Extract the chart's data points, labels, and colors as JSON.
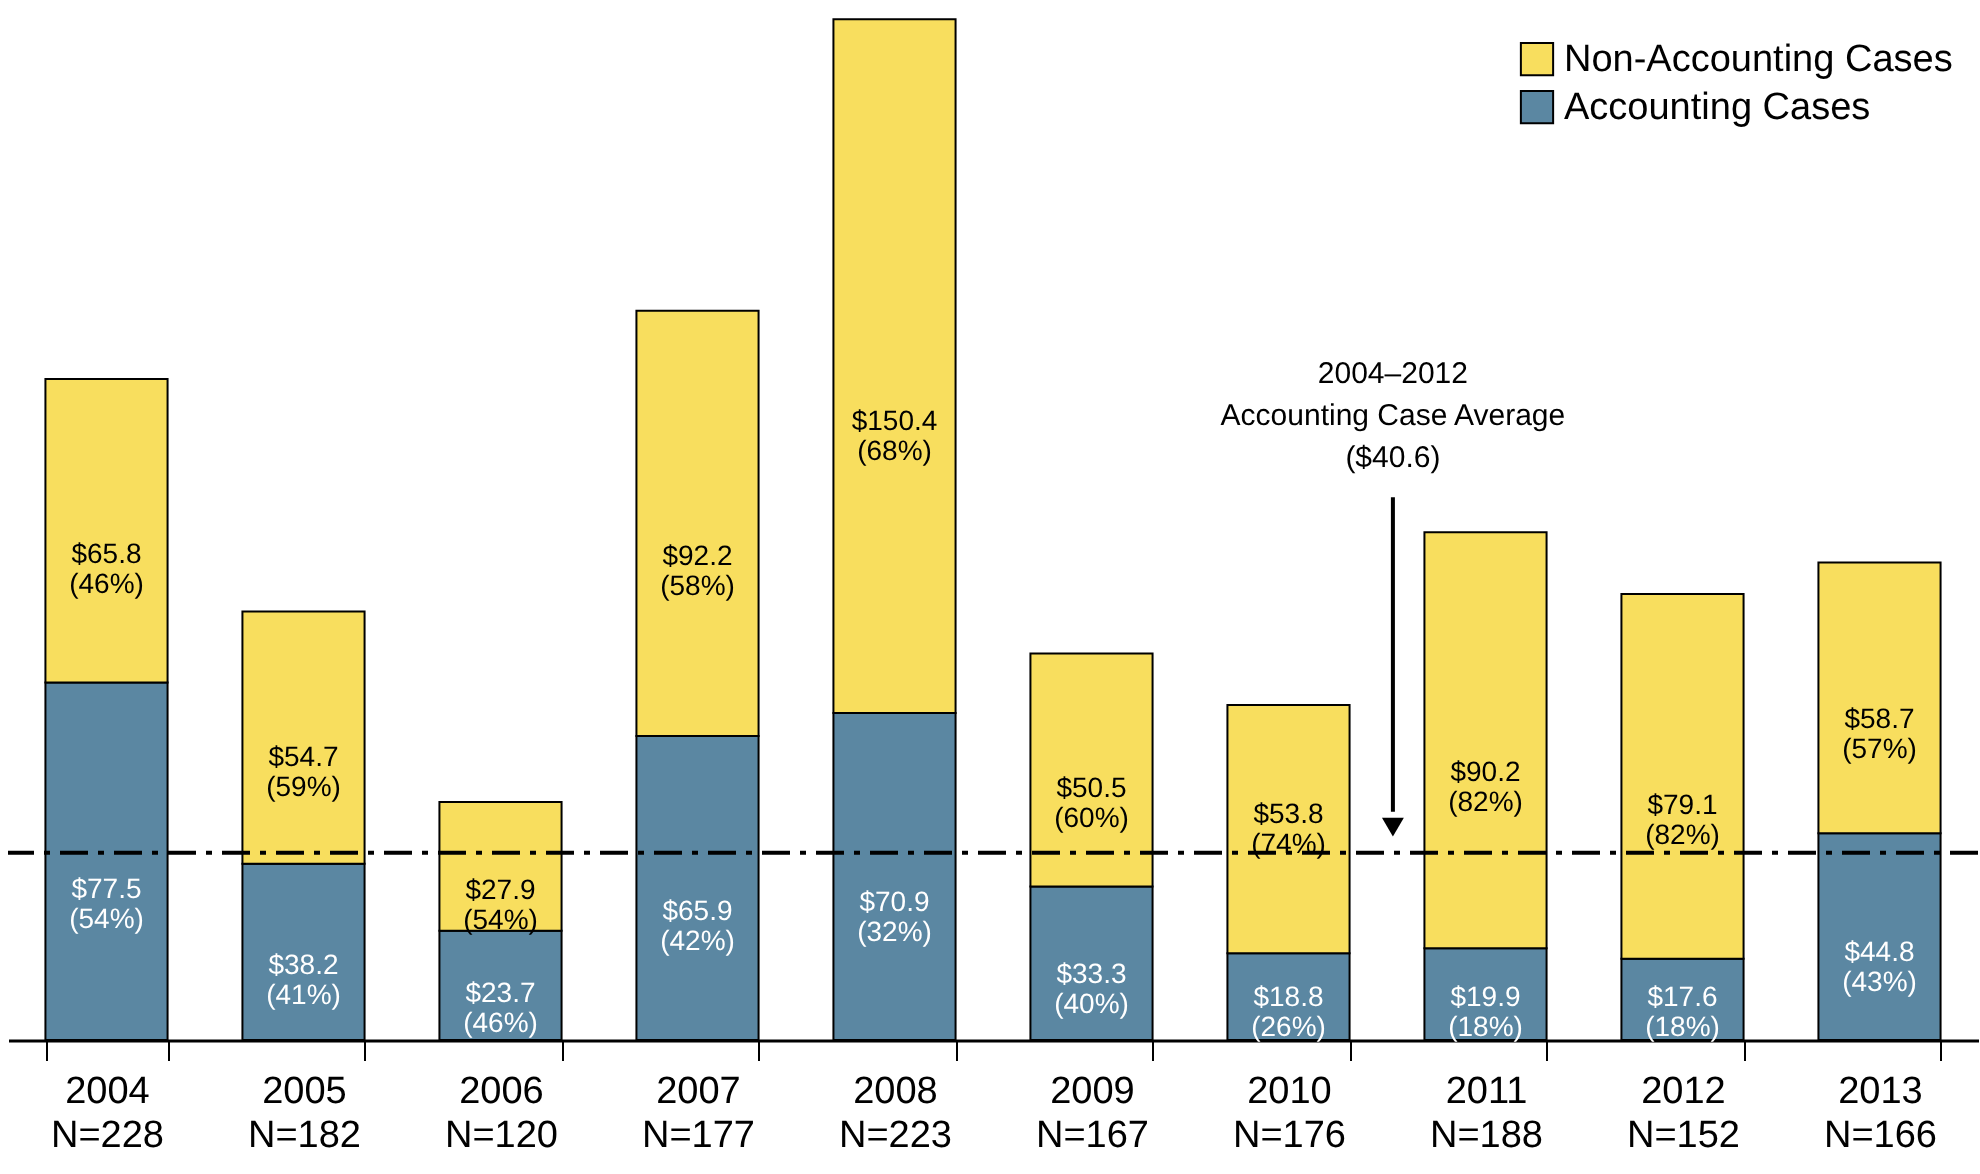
{
  "chart_data": {
    "type": "bar",
    "stacked": true,
    "categories": [
      "2004\nN=228",
      "2005\nN=182",
      "2006\nN=120",
      "2007\nN=177",
      "2008\nN=223",
      "2009\nN=167",
      "2010\nN=176",
      "2011\nN=188",
      "2012\nN=152",
      "2013\nN=166"
    ],
    "series": [
      {
        "name": "Accounting Cases",
        "color": "#5b87a2",
        "values": [
          77.5,
          38.2,
          23.7,
          65.9,
          70.9,
          33.3,
          18.8,
          19.9,
          17.6,
          44.8
        ],
        "value_labels": [
          "$77.5\n(54%)",
          "$38.2\n(41%)",
          "$23.7\n(46%)",
          "$65.9\n(42%)",
          "$70.9\n(32%)",
          "$33.3\n(40%)",
          "$18.8\n(26%)",
          "$19.9\n(18%)",
          "$17.6\n(18%)",
          "$44.8\n(43%)"
        ]
      },
      {
        "name": "Non-Accounting Cases",
        "color": "#f8de5e",
        "values": [
          65.8,
          54.7,
          27.9,
          92.2,
          150.4,
          50.5,
          53.8,
          90.2,
          79.1,
          58.7
        ],
        "value_labels": [
          "$65.8\n(46%)",
          "$54.7\n(59%)",
          "$27.9\n(54%)",
          "$92.2\n(58%)",
          "$150.4\n(68%)",
          "$50.5\n(60%)",
          "$53.8\n(74%)",
          "$90.2\n(82%)",
          "$79.1\n(82%)",
          "$58.7\n(57%)"
        ]
      }
    ],
    "ylim": [
      0,
      222
    ],
    "tick_labels": "x",
    "grid": false,
    "legend": "top right",
    "ref_lines": [
      {
        "axis": "y",
        "value": 40.6,
        "color": "#000000",
        "line_style": "dashed"
      }
    ],
    "annotations": [
      "2004–2012\nAccounting Case Average\n($40.6)"
    ]
  }
}
